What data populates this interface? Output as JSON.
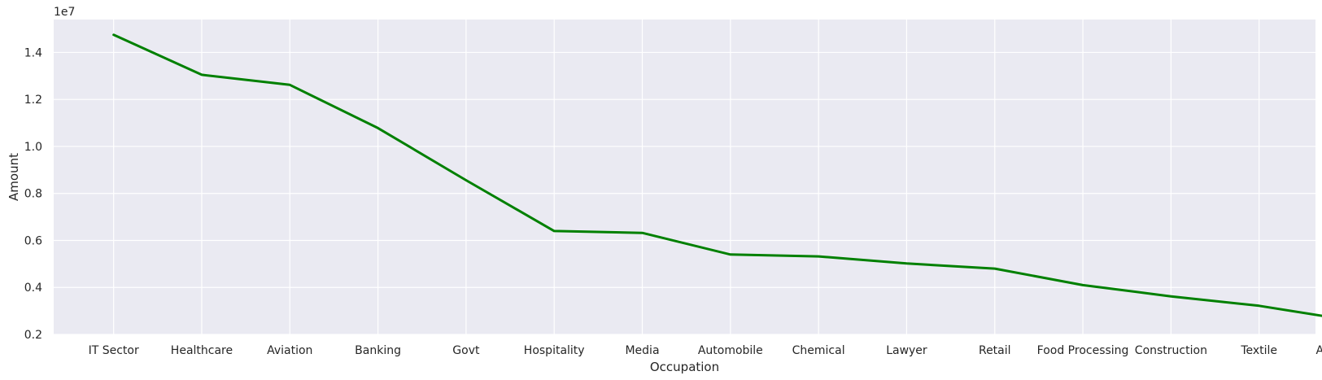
{
  "chart_data": {
    "type": "line",
    "title": "",
    "xlabel": "Occupation",
    "ylabel": "Amount",
    "y_offset_label": "1e7",
    "y_scale_factor": 10000000,
    "ylim": [
      0.2,
      1.54
    ],
    "yticks": [
      0.2,
      0.4,
      0.6,
      0.8,
      1.0,
      1.2,
      1.4
    ],
    "ytick_labels": [
      "0.2",
      "0.4",
      "0.6",
      "0.8",
      "1.0",
      "1.2",
      "1.4"
    ],
    "grid": true,
    "colors": {
      "line": "#008000",
      "background": "#eaeaf2",
      "grid": "#ffffff"
    },
    "categories": [
      "IT Sector",
      "Healthcare",
      "Aviation",
      "Banking",
      "Govt",
      "Hospitality",
      "Media",
      "Automobile",
      "Chemical",
      "Lawyer",
      "Retail",
      "Food Processing",
      "Construction",
      "Textile",
      "Agriculture"
    ],
    "series": [
      {
        "values": [
          1.475,
          1.305,
          1.262,
          1.078,
          0.856,
          0.64,
          0.632,
          0.54,
          0.532,
          0.502,
          0.48,
          0.41,
          0.362,
          0.322,
          0.262
        ]
      }
    ]
  }
}
